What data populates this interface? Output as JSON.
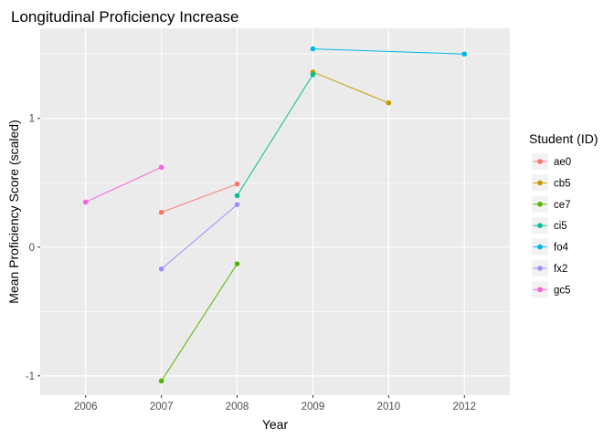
{
  "chart_data": {
    "type": "line",
    "title": "Longitudinal Proficiency Increase",
    "xlabel": "Year",
    "ylabel": "Mean Proficiency Score (scaled)",
    "x_categories": [
      "2006",
      "2007",
      "2008",
      "2009",
      "2010",
      "2012"
    ],
    "xlim_index": [
      -0.6,
      5.6
    ],
    "ylim": [
      -1.15,
      1.7
    ],
    "y_ticks": [
      -1,
      0,
      1
    ],
    "y_tick_labels": [
      "-1",
      "0",
      "1"
    ],
    "y_minor_ticks": [
      -0.5,
      0.5,
      1.5
    ],
    "grid": true,
    "legend": {
      "title": "Student (ID)",
      "position": "right"
    },
    "series": [
      {
        "name": "ae0",
        "color": "#F8766D",
        "points": [
          [
            "2007",
            0.27
          ],
          [
            "2008",
            0.49
          ]
        ]
      },
      {
        "name": "cb5",
        "color": "#C49A00",
        "points": [
          [
            "2009",
            1.36
          ],
          [
            "2010",
            1.12
          ]
        ]
      },
      {
        "name": "ce7",
        "color": "#53B400",
        "points": [
          [
            "2007",
            -1.04
          ],
          [
            "2008",
            -0.13
          ]
        ]
      },
      {
        "name": "ci5",
        "color": "#00C094",
        "points": [
          [
            "2008",
            0.4
          ],
          [
            "2009",
            1.34
          ]
        ]
      },
      {
        "name": "fo4",
        "color": "#00B6EB",
        "points": [
          [
            "2009",
            1.54
          ],
          [
            "2012",
            1.5
          ]
        ]
      },
      {
        "name": "fx2",
        "color": "#A58AFF",
        "points": [
          [
            "2007",
            -0.17
          ],
          [
            "2008",
            0.33
          ]
        ]
      },
      {
        "name": "gc5",
        "color": "#FB61D7",
        "points": [
          [
            "2006",
            0.35
          ],
          [
            "2007",
            0.62
          ]
        ]
      }
    ]
  }
}
